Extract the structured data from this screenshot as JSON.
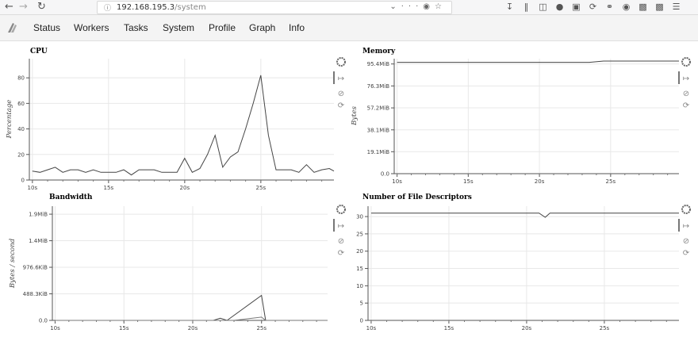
{
  "browser": {
    "url_host": "192.168.195.3",
    "url_path": "/system",
    "back_icon": "arrow-left-icon",
    "forward_icon": "arrow-right-icon",
    "reload_icon": "reload-icon"
  },
  "menu": {
    "items": [
      {
        "label": "Status"
      },
      {
        "label": "Workers"
      },
      {
        "label": "Tasks"
      },
      {
        "label": "System"
      },
      {
        "label": "Profile"
      },
      {
        "label": "Graph"
      },
      {
        "label": "Info"
      }
    ]
  },
  "chart_data": [
    {
      "type": "line",
      "title": "CPU",
      "ylabel": "Percentage",
      "ylim": [
        0,
        95
      ],
      "xlim": [
        9.8,
        29.8
      ],
      "xticks": [
        "10s",
        "15s",
        "20s",
        "25s"
      ],
      "xtick_values": [
        10,
        15,
        20,
        25
      ],
      "yticks": [
        "0",
        "20",
        "40",
        "60",
        "80"
      ],
      "ytick_values": [
        0,
        20,
        40,
        60,
        80
      ],
      "grid": true,
      "series": [
        {
          "x": [
            10,
            10.5,
            11,
            11.5,
            12,
            12.5,
            13,
            13.5,
            14,
            14.5,
            15,
            15.5,
            16,
            16.5,
            17,
            17.5,
            18,
            18.5,
            19,
            19.5,
            20,
            20.5,
            21,
            21.5,
            22,
            22.5,
            23,
            23.5,
            24,
            24.5,
            25,
            25.5,
            26,
            26.5,
            27,
            27.5,
            28,
            28.5,
            29,
            29.5,
            29.8
          ],
          "y": [
            7,
            6,
            8,
            10,
            6,
            8,
            8,
            6,
            8,
            6,
            6,
            6,
            8,
            4,
            8,
            8,
            8,
            6,
            6,
            6,
            17,
            6,
            9,
            20,
            35,
            10,
            18,
            22,
            40,
            60,
            82,
            35,
            8,
            8,
            8,
            6,
            12,
            6,
            8,
            9,
            7
          ]
        }
      ]
    },
    {
      "type": "line",
      "title": "Memory",
      "ylabel": "Bytes",
      "ylim": [
        0,
        100
      ],
      "xlim": [
        9.8,
        29.8
      ],
      "xticks": [
        "10s",
        "15s",
        "20s",
        "25s"
      ],
      "xtick_values": [
        10,
        15,
        20,
        25
      ],
      "yticks": [
        "0.0",
        "19.1MiB",
        "38.1MiB",
        "57.2MiB",
        "76.3MiB",
        "95.4MiB"
      ],
      "ytick_values": [
        0,
        19.1,
        38.1,
        57.2,
        76.3,
        95.4
      ],
      "grid": true,
      "series": [
        {
          "x": [
            10,
            23.5,
            24.5,
            29.8
          ],
          "y": [
            96.8,
            96.8,
            97.9,
            97.9
          ]
        }
      ]
    },
    {
      "type": "line",
      "title": "Bandwidth",
      "ylabel": "Bytes / second",
      "ylim": [
        0,
        2100
      ],
      "xlim": [
        9.8,
        29.8
      ],
      "xticks": [
        "10s",
        "15s",
        "20s",
        "25s"
      ],
      "xtick_values": [
        10,
        15,
        20,
        25
      ],
      "yticks": [
        "0.0",
        "488.3KiB",
        "976.6KiB",
        "1.4MiB",
        "1.9MiB"
      ],
      "ytick_values": [
        0,
        488.3,
        976.6,
        1464.8,
        1953.1
      ],
      "grid": true,
      "series": [
        {
          "x": [
            10,
            21.5,
            22,
            22.5,
            25,
            25.3,
            29.8
          ],
          "y": [
            0,
            0,
            40,
            0,
            460,
            0,
            0
          ]
        },
        {
          "x": [
            10,
            23,
            25,
            25.3,
            29.8
          ],
          "y": [
            0,
            0,
            60,
            0,
            0
          ]
        }
      ]
    },
    {
      "type": "line",
      "title": "Number of File Descriptors",
      "ylabel": "",
      "ylim": [
        0,
        33
      ],
      "xlim": [
        9.8,
        29.8
      ],
      "xticks": [
        "10s",
        "15s",
        "20s",
        "25s"
      ],
      "xtick_values": [
        10,
        15,
        20,
        25
      ],
      "yticks": [
        "0",
        "5",
        "10",
        "15",
        "20",
        "25",
        "30"
      ],
      "ytick_values": [
        0,
        5,
        10,
        15,
        20,
        25,
        30
      ],
      "grid": true,
      "series": [
        {
          "x": [
            10,
            20.8,
            21.2,
            21.5,
            29.8
          ],
          "y": [
            31,
            31,
            29.8,
            31,
            31
          ]
        }
      ]
    }
  ]
}
